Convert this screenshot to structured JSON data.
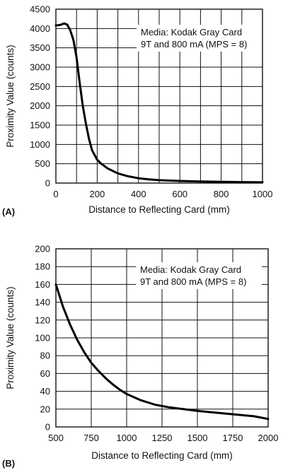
{
  "chart_data": [
    {
      "type": "line",
      "panel_label": "(A)",
      "title": "",
      "xlabel": "Distance to Reflecting Card (mm)",
      "ylabel": "Proximity Value (counts)",
      "xlim": [
        0,
        1000
      ],
      "ylim": [
        0,
        4500
      ],
      "xticks": [
        0,
        200,
        400,
        600,
        800,
        1000
      ],
      "yticks": [
        0,
        500,
        1000,
        1500,
        2000,
        2500,
        3000,
        3500,
        4000,
        4500
      ],
      "x_grid_step": 100,
      "y_grid_step": 500,
      "annotation": [
        "Media: Kodak Gray Card",
        "9T and 800 mA (MPS = 8)"
      ],
      "series": [
        {
          "x": [
            0,
            20,
            40,
            55,
            70,
            85,
            100,
            115,
            130,
            145,
            160,
            175,
            190,
            200,
            220,
            250,
            300,
            350,
            400,
            450,
            500,
            600,
            700,
            800,
            900,
            1000
          ],
          "y": [
            4080,
            4090,
            4130,
            4100,
            3950,
            3700,
            3250,
            2600,
            2000,
            1550,
            1150,
            850,
            700,
            600,
            500,
            380,
            250,
            175,
            125,
            95,
            75,
            55,
            42,
            32,
            25,
            20
          ]
        }
      ]
    },
    {
      "type": "line",
      "panel_label": "(B)",
      "title": "",
      "xlabel": "Distance to Reflecting Card (mm)",
      "ylabel": "Proximity Value (counts)",
      "xlim": [
        500,
        2000
      ],
      "ylim": [
        0,
        200
      ],
      "xticks": [
        500,
        750,
        1000,
        1250,
        1500,
        1750,
        2000
      ],
      "yticks": [
        0,
        20,
        40,
        60,
        80,
        100,
        120,
        140,
        160,
        180,
        200
      ],
      "x_grid_step": 250,
      "y_grid_step": 20,
      "annotation": [
        "Media: Kodak Gray Card",
        "9T and 800 mA (MPS = 8)"
      ],
      "series": [
        {
          "x": [
            500,
            550,
            600,
            650,
            700,
            750,
            800,
            850,
            900,
            950,
            1000,
            1100,
            1200,
            1300,
            1400,
            1500,
            1600,
            1700,
            1800,
            1900,
            2000
          ],
          "y": [
            160,
            135,
            115,
            98,
            84,
            72,
            63,
            55,
            48,
            42,
            37,
            30,
            25,
            22,
            20,
            18,
            16.5,
            15,
            13.5,
            12,
            9
          ]
        }
      ]
    }
  ]
}
